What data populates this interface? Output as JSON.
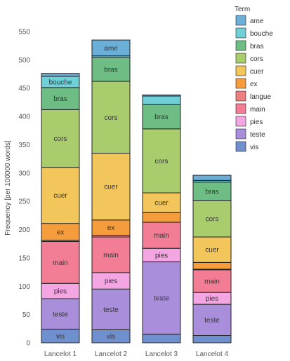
{
  "chart_data": {
    "type": "bar",
    "stacked": true,
    "categories": [
      "Lancelot 1",
      "Lancelot 2",
      "Lancelot 3",
      "Lancelot 4"
    ],
    "ylabel": "Frequency [per 100000 words]",
    "xlabel": "",
    "ylim": [
      0,
      550
    ],
    "yticks": [
      0,
      50,
      100,
      150,
      200,
      250,
      300,
      350,
      400,
      450,
      500,
      550
    ],
    "legend_title": "Term",
    "legend_position": "right",
    "series": [
      {
        "name": "vis",
        "color": "#6f8fcf",
        "values": [
          24,
          23,
          15,
          13
        ]
      },
      {
        "name": "teste",
        "color": "#a98fdb",
        "values": [
          54,
          72,
          128,
          55
        ]
      },
      {
        "name": "pies",
        "color": "#f4a6e3",
        "values": [
          27,
          29,
          24,
          21
        ]
      },
      {
        "name": "main",
        "color": "#f47d96",
        "values": [
          74,
          63,
          46,
          40
        ]
      },
      {
        "name": "langue",
        "color": "#ed7f7f",
        "values": [
          2,
          3,
          0,
          1
        ]
      },
      {
        "name": "ex",
        "color": "#f59c3d",
        "values": [
          30,
          27,
          17,
          12
        ]
      },
      {
        "name": "cuer",
        "color": "#f2c65a",
        "values": [
          99,
          118,
          35,
          45
        ]
      },
      {
        "name": "cors",
        "color": "#a9cd6d",
        "values": [
          102,
          127,
          113,
          64
        ]
      },
      {
        "name": "bras",
        "color": "#6dbd85",
        "values": [
          39,
          42,
          43,
          33
        ]
      },
      {
        "name": "bouche",
        "color": "#6fd0d8",
        "values": [
          20,
          3,
          15,
          3
        ]
      },
      {
        "name": "ame",
        "color": "#6bafd9",
        "values": [
          5,
          28,
          2,
          9
        ]
      }
    ],
    "legend_order": [
      "ame",
      "bouche",
      "bras",
      "cors",
      "cuer",
      "ex",
      "langue",
      "main",
      "pies",
      "teste",
      "vis"
    ]
  }
}
